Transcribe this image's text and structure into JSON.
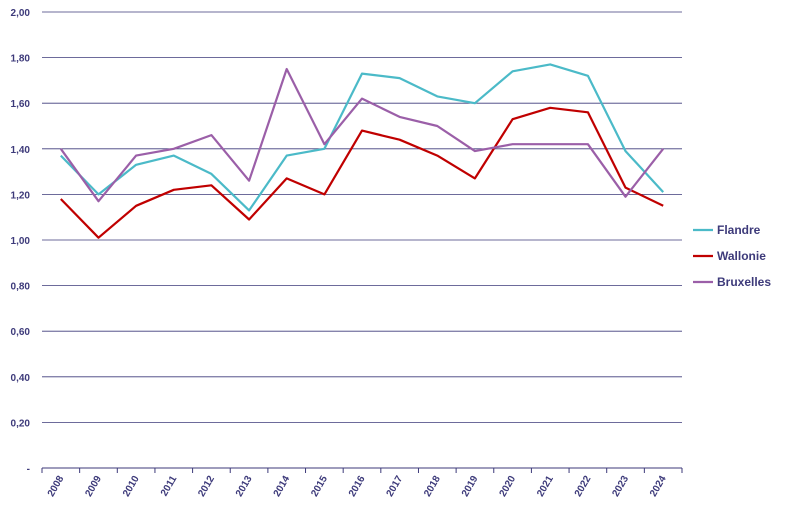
{
  "chart_data": {
    "type": "line",
    "title": "",
    "xlabel": "",
    "ylabel": "",
    "x": [
      "2008",
      "2009",
      "2010",
      "2011",
      "2012",
      "2013",
      "2014",
      "2015",
      "2016",
      "2017",
      "2018",
      "2019",
      "2020",
      "2021",
      "2022",
      "2023",
      "2024"
    ],
    "ylim": [
      0,
      2.0
    ],
    "yticks": [
      "-",
      "0,20",
      "0,40",
      "0,60",
      "0,80",
      "1,00",
      "1,20",
      "1,40",
      "1,60",
      "1,80",
      "2,00"
    ],
    "grid": "horizontal",
    "legend_position": "right",
    "series": [
      {
        "name": "Flandre",
        "color": "#4bbac8",
        "values": [
          1.37,
          1.2,
          1.33,
          1.37,
          1.29,
          1.13,
          1.37,
          1.4,
          1.73,
          1.71,
          1.63,
          1.6,
          1.74,
          1.77,
          1.72,
          1.39,
          1.21
        ]
      },
      {
        "name": "Wallonie",
        "color": "#c00000",
        "values": [
          1.18,
          1.01,
          1.15,
          1.22,
          1.24,
          1.09,
          1.27,
          1.2,
          1.48,
          1.44,
          1.37,
          1.27,
          1.53,
          1.58,
          1.56,
          1.23,
          1.15
        ]
      },
      {
        "name": "Bruxelles",
        "color": "#9b5fa8",
        "values": [
          1.4,
          1.17,
          1.37,
          1.4,
          1.46,
          1.26,
          1.75,
          1.42,
          1.62,
          1.54,
          1.5,
          1.39,
          1.42,
          1.42,
          1.42,
          1.19,
          1.4
        ]
      }
    ]
  }
}
